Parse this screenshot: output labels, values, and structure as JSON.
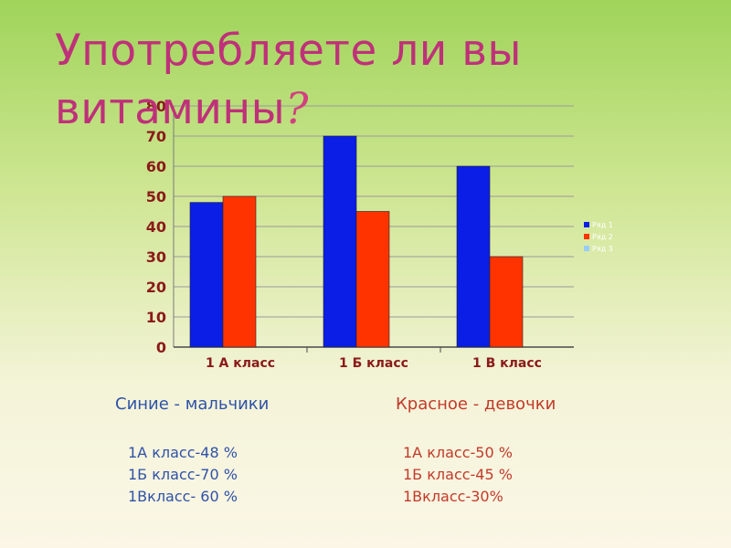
{
  "title": {
    "line1": "Употребляете ли вы",
    "line2_text": "витамины",
    "line2_mark": "?"
  },
  "chart_data": {
    "type": "bar",
    "categories": [
      "1 А класс",
      "1 Б класс",
      "1 В класс"
    ],
    "series": [
      {
        "name": "Ряд 1",
        "values": [
          48,
          70,
          60
        ],
        "color": "#0a1ee6"
      },
      {
        "name": "Ряд 2",
        "values": [
          50,
          45,
          30
        ],
        "color": "#ff3300"
      },
      {
        "name": "Ряд 3",
        "values": [
          0,
          0,
          0
        ],
        "color": "#99ccff"
      }
    ],
    "ylim": [
      0,
      80
    ],
    "yticks": [
      0,
      10,
      20,
      30,
      40,
      50,
      60,
      70,
      80
    ],
    "grid": true,
    "legend": "right"
  },
  "captions": {
    "boys": "Синие - мальчики",
    "girls": "Красное - девочки"
  },
  "boys_list": [
    "1А класс-48 %",
    "1Б класс-70 %",
    "1Вкласс- 60 %"
  ],
  "girls_list": [
    "1А класс-50 %",
    "1Б класс-45 %",
    "1Вкласс-30%"
  ]
}
